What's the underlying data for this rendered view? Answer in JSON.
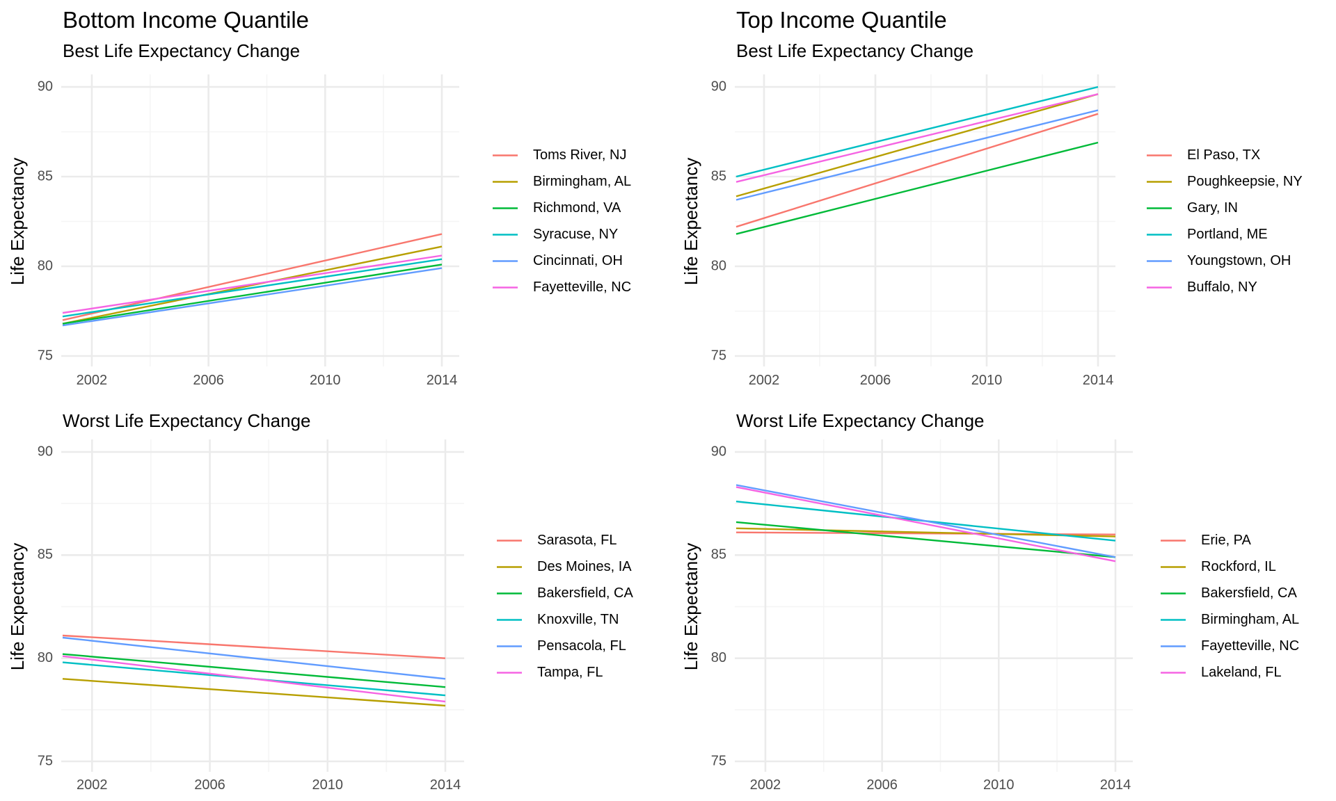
{
  "figure": {
    "colors": [
      "#F8766D",
      "#B79F00",
      "#00BA38",
      "#00BFC4",
      "#619CFF",
      "#F564E3"
    ],
    "grid_major": "#EBEBEB",
    "grid_minor": "#F5F5F5"
  },
  "chart_data": [
    {
      "type": "line",
      "title": "Bottom Income Quantile",
      "subtitle": "Best Life Expectancy Change",
      "xlabel": "",
      "ylabel": "Life Expectancy",
      "xlim": [
        2001,
        2014
      ],
      "ylim": [
        75,
        90
      ],
      "xticks": [
        2002,
        2006,
        2010,
        2014
      ],
      "yticks": [
        75,
        80,
        85,
        90
      ],
      "grid": true,
      "legend": "right",
      "series": [
        {
          "name": "Toms River, NJ",
          "x": [
            2001,
            2014
          ],
          "y": [
            77.0,
            81.8
          ]
        },
        {
          "name": "Birmingham, AL",
          "x": [
            2001,
            2014
          ],
          "y": [
            76.8,
            81.1
          ]
        },
        {
          "name": "Richmond, VA",
          "x": [
            2001,
            2014
          ],
          "y": [
            76.8,
            80.1
          ]
        },
        {
          "name": "Syracuse, NY",
          "x": [
            2001,
            2014
          ],
          "y": [
            77.2,
            80.4
          ]
        },
        {
          "name": "Cincinnati, OH",
          "x": [
            2001,
            2014
          ],
          "y": [
            76.7,
            79.9
          ]
        },
        {
          "name": "Fayetteville, NC",
          "x": [
            2001,
            2014
          ],
          "y": [
            77.4,
            80.6
          ]
        }
      ]
    },
    {
      "type": "line",
      "title": "Top Income Quantile",
      "subtitle": "Best Life Expectancy Change",
      "xlabel": "",
      "ylabel": "Life Expectancy",
      "xlim": [
        2001,
        2014
      ],
      "ylim": [
        75,
        90
      ],
      "xticks": [
        2002,
        2006,
        2010,
        2014
      ],
      "yticks": [
        75,
        80,
        85,
        90
      ],
      "grid": true,
      "legend": "right",
      "series": [
        {
          "name": "El Paso, TX",
          "x": [
            2001,
            2014
          ],
          "y": [
            82.2,
            88.5
          ]
        },
        {
          "name": "Poughkeepsie, NY",
          "x": [
            2001,
            2014
          ],
          "y": [
            83.9,
            89.6
          ]
        },
        {
          "name": "Gary, IN",
          "x": [
            2001,
            2014
          ],
          "y": [
            81.8,
            86.9
          ]
        },
        {
          "name": "Portland, ME",
          "x": [
            2001,
            2014
          ],
          "y": [
            85.0,
            90.0
          ]
        },
        {
          "name": "Youngstown, OH",
          "x": [
            2001,
            2014
          ],
          "y": [
            83.7,
            88.7
          ]
        },
        {
          "name": "Buffalo, NY",
          "x": [
            2001,
            2014
          ],
          "y": [
            84.7,
            89.6
          ]
        }
      ]
    },
    {
      "type": "line",
      "title": "",
      "subtitle": "Worst Life Expectancy Change",
      "xlabel": "",
      "ylabel": "Life Expectancy",
      "xlim": [
        2001,
        2014
      ],
      "ylim": [
        75,
        90
      ],
      "xticks": [
        2002,
        2006,
        2010,
        2014
      ],
      "yticks": [
        75,
        80,
        85,
        90
      ],
      "grid": true,
      "legend": "right",
      "series": [
        {
          "name": "Sarasota, FL",
          "x": [
            2001,
            2014
          ],
          "y": [
            81.1,
            80.0
          ]
        },
        {
          "name": "Des Moines, IA",
          "x": [
            2001,
            2014
          ],
          "y": [
            79.0,
            77.7
          ]
        },
        {
          "name": "Bakersfield, CA",
          "x": [
            2001,
            2014
          ],
          "y": [
            80.2,
            78.6
          ]
        },
        {
          "name": "Knoxville, TN",
          "x": [
            2001,
            2014
          ],
          "y": [
            79.8,
            78.2
          ]
        },
        {
          "name": "Pensacola, FL",
          "x": [
            2001,
            2014
          ],
          "y": [
            81.0,
            79.0
          ]
        },
        {
          "name": "Tampa, FL",
          "x": [
            2001,
            2014
          ],
          "y": [
            80.1,
            77.9
          ]
        }
      ]
    },
    {
      "type": "line",
      "title": "",
      "subtitle": "Worst Life Expectancy Change",
      "xlabel": "",
      "ylabel": "Life Expectancy",
      "xlim": [
        2001,
        2014
      ],
      "ylim": [
        75,
        90
      ],
      "xticks": [
        2002,
        2006,
        2010,
        2014
      ],
      "yticks": [
        75,
        80,
        85,
        90
      ],
      "grid": true,
      "legend": "right",
      "series": [
        {
          "name": "Erie, PA",
          "x": [
            2001,
            2014
          ],
          "y": [
            86.1,
            86.0
          ]
        },
        {
          "name": "Rockford, IL",
          "x": [
            2001,
            2014
          ],
          "y": [
            86.3,
            85.9
          ]
        },
        {
          "name": "Bakersfield, CA",
          "x": [
            2001,
            2014
          ],
          "y": [
            86.6,
            84.9
          ]
        },
        {
          "name": "Birmingham, AL",
          "x": [
            2001,
            2014
          ],
          "y": [
            87.6,
            85.7
          ]
        },
        {
          "name": "Fayetteville, NC",
          "x": [
            2001,
            2014
          ],
          "y": [
            88.4,
            84.9
          ]
        },
        {
          "name": "Lakeland, FL",
          "x": [
            2001,
            2014
          ],
          "y": [
            88.3,
            84.7
          ]
        }
      ]
    }
  ]
}
